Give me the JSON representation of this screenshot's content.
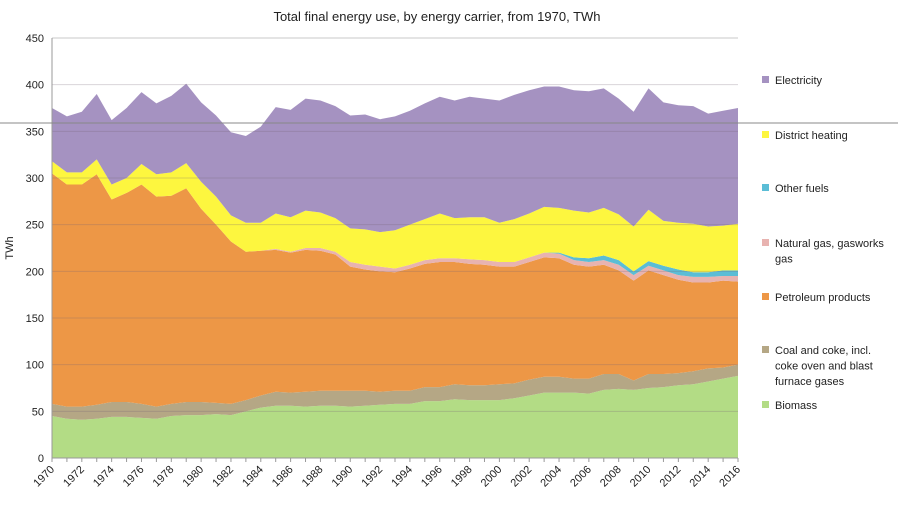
{
  "chart_data": {
    "type": "area",
    "stacked": true,
    "title": "Total final energy use, by energy carrier, from 1970, TWh",
    "xlabel": "",
    "ylabel": "TWh",
    "ylim": [
      0,
      450
    ],
    "yticks": [
      0,
      50,
      100,
      150,
      200,
      250,
      300,
      350,
      400,
      450
    ],
    "grid": true,
    "legend_position": "right",
    "x": [
      1970,
      1971,
      1972,
      1973,
      1974,
      1975,
      1976,
      1977,
      1978,
      1979,
      1980,
      1981,
      1982,
      1983,
      1984,
      1985,
      1986,
      1987,
      1988,
      1989,
      1990,
      1991,
      1992,
      1993,
      1994,
      1995,
      1996,
      1997,
      1998,
      1999,
      2000,
      2001,
      2002,
      2003,
      2004,
      2005,
      2006,
      2007,
      2008,
      2009,
      2010,
      2011,
      2012,
      2013,
      2014,
      2015,
      2016
    ],
    "xtick_labels": [
      "1970",
      "1972",
      "1974",
      "1976",
      "1978",
      "1980",
      "1982",
      "1984",
      "1986",
      "1988",
      "1990",
      "1992",
      "1994",
      "1996",
      "1998",
      "2000",
      "2002",
      "2004",
      "2006",
      "2008",
      "2010",
      "2012",
      "2014",
      "2016"
    ],
    "series": [
      {
        "name": "Biomass",
        "color": "#b3dc85",
        "values": [
          45,
          42,
          41,
          42,
          44,
          44,
          43,
          42,
          45,
          46,
          46,
          47,
          46,
          50,
          54,
          56,
          56,
          55,
          56,
          56,
          55,
          56,
          57,
          58,
          58,
          61,
          61,
          63,
          62,
          62,
          62,
          64,
          67,
          70,
          70,
          70,
          69,
          73,
          74,
          73,
          75,
          76,
          78,
          79,
          82,
          85,
          88
        ]
      },
      {
        "name": "Coal and coke, incl. coke oven and blast furnace gases",
        "color": "#b5a785",
        "values": [
          13,
          13,
          14,
          15,
          16,
          16,
          15,
          13,
          13,
          14,
          14,
          12,
          12,
          12,
          13,
          15,
          14,
          16,
          16,
          16,
          17,
          16,
          14,
          14,
          14,
          15,
          15,
          16,
          16,
          16,
          17,
          16,
          17,
          17,
          17,
          15,
          16,
          17,
          16,
          10,
          15,
          14,
          13,
          14,
          14,
          12,
          12
        ]
      },
      {
        "name": "Petroleum products",
        "color": "#ed9746",
        "values": [
          247,
          238,
          238,
          247,
          217,
          224,
          235,
          225,
          223,
          229,
          207,
          191,
          174,
          159,
          155,
          152,
          150,
          152,
          150,
          146,
          133,
          130,
          129,
          127,
          131,
          132,
          134,
          131,
          130,
          129,
          126,
          125,
          126,
          128,
          127,
          122,
          120,
          117,
          111,
          107,
          111,
          106,
          100,
          95,
          92,
          93,
          89
        ]
      },
      {
        "name": "Natural gas, gasworks gas",
        "color": "#e8b3b0",
        "values": [
          0,
          0,
          0,
          0,
          0,
          0,
          0,
          0,
          0,
          0,
          0,
          0,
          0,
          0,
          0,
          1,
          1,
          2,
          3,
          3,
          5,
          5,
          5,
          4,
          4,
          4,
          4,
          4,
          5,
          5,
          5,
          5,
          5,
          5,
          5,
          5,
          5,
          5,
          6,
          6,
          5,
          5,
          5,
          6,
          6,
          5,
          6
        ]
      },
      {
        "name": "Other fuels",
        "color": "#5bbdd6",
        "values": [
          0,
          0,
          0,
          0,
          0,
          0,
          0,
          0,
          0,
          0,
          0,
          0,
          0,
          0,
          0,
          0,
          0,
          0,
          0,
          0,
          0,
          0,
          0,
          0,
          0,
          0,
          0,
          0,
          0,
          0,
          0,
          0,
          0,
          0,
          1,
          3,
          4,
          5,
          5,
          4,
          5,
          5,
          6,
          5,
          5,
          6,
          6
        ]
      },
      {
        "name": "District heating",
        "color": "#fdf63f",
        "values": [
          13,
          13,
          13,
          16,
          16,
          16,
          22,
          24,
          25,
          27,
          29,
          30,
          28,
          31,
          30,
          38,
          37,
          40,
          38,
          36,
          36,
          38,
          37,
          41,
          43,
          44,
          48,
          43,
          45,
          46,
          42,
          46,
          47,
          49,
          48,
          50,
          49,
          51,
          49,
          48,
          55,
          48,
          50,
          52,
          49,
          48,
          50
        ]
      },
      {
        "name": "Electricity",
        "color": "#a592c1",
        "values": [
          57,
          60,
          65,
          70,
          69,
          75,
          77,
          76,
          82,
          85,
          85,
          87,
          89,
          93,
          103,
          114,
          115,
          120,
          120,
          120,
          121,
          123,
          121,
          122,
          122,
          124,
          125,
          126,
          129,
          127,
          131,
          133,
          132,
          129,
          130,
          129,
          130,
          128,
          124,
          123,
          130,
          127,
          126,
          126,
          121,
          123,
          124
        ]
      }
    ],
    "legend_order": [
      "Electricity",
      "District heating",
      "Other fuels",
      "Natural gas, gasworks gas",
      "Petroleum products",
      "Coal and coke, incl. coke oven and blast furnace gases",
      "Biomass"
    ],
    "legend_lines": {
      "Electricity": [
        "Electricity"
      ],
      "District heating": [
        "District heating"
      ],
      "Other fuels": [
        "Other fuels"
      ],
      "Natural gas, gasworks gas": [
        "Natural gas, gasworks",
        "gas"
      ],
      "Petroleum products": [
        "Petroleum products"
      ],
      "Coal and coke, incl. coke oven and blast furnace gases": [
        "Coal and coke, incl.",
        "coke oven and blast",
        "furnace gases"
      ],
      "Biomass": [
        "Biomass"
      ]
    }
  }
}
